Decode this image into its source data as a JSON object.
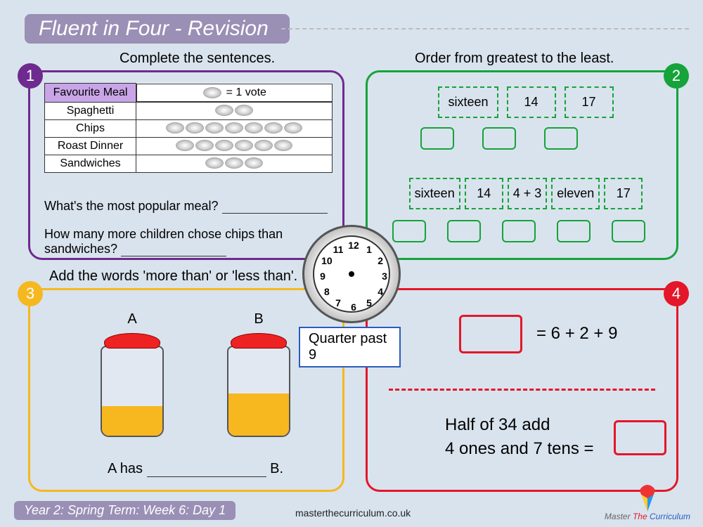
{
  "title": "Fluent in Four - Revision",
  "headings": {
    "h1": "Complete the sentences.",
    "h2": "Order from greatest to the least.",
    "h3": "Add the words 'more than' or 'less than'."
  },
  "badges": {
    "b1": "1",
    "b2": "2",
    "b3": "3",
    "b4": "4"
  },
  "table": {
    "header_col": "Favourite Meal",
    "legend_text": "= 1 vote",
    "rows": [
      {
        "name": "Spaghetti",
        "count": 2
      },
      {
        "name": "Chips",
        "count": 7
      },
      {
        "name": "Roast Dinner",
        "count": 6
      },
      {
        "name": "Sandwiches",
        "count": 3
      }
    ]
  },
  "q1a": "What's the most popular meal?",
  "q1b": "How many more children chose chips than sandwiches?",
  "ord1": [
    "sixteen",
    "14",
    "17"
  ],
  "ord2": [
    "sixteen",
    "14",
    "4 + 3",
    "eleven",
    "17"
  ],
  "clock_label": "Quarter past 9",
  "jars": {
    "A": "A",
    "B": "B"
  },
  "q3_pre": "A has",
  "q3_post": "B.",
  "eq1": "= 6 + 2 + 9",
  "eq2": "Half of 34 add\n4 ones and 7 tens =",
  "footer_l": "Year 2: Spring Term: Week 6: Day 1",
  "footer_c": "masterthecurriculum.co.uk",
  "logo": {
    "w1": "Master",
    "w2": "The",
    "w3": "Curriculum"
  }
}
